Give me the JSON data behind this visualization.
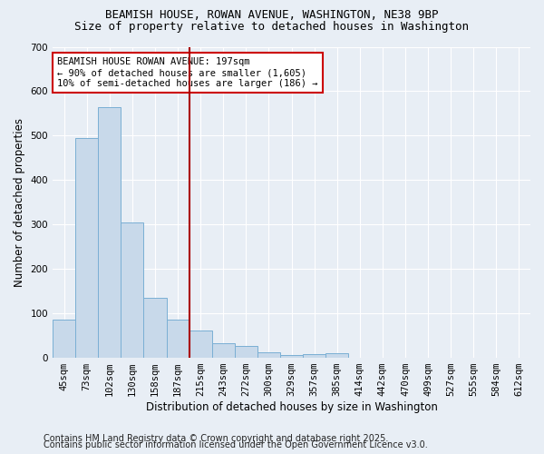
{
  "title_line1": "BEAMISH HOUSE, ROWAN AVENUE, WASHINGTON, NE38 9BP",
  "title_line2": "Size of property relative to detached houses in Washington",
  "xlabel": "Distribution of detached houses by size in Washington",
  "ylabel": "Number of detached properties",
  "categories": [
    "45sqm",
    "73sqm",
    "102sqm",
    "130sqm",
    "158sqm",
    "187sqm",
    "215sqm",
    "243sqm",
    "272sqm",
    "300sqm",
    "329sqm",
    "357sqm",
    "385sqm",
    "414sqm",
    "442sqm",
    "470sqm",
    "499sqm",
    "527sqm",
    "555sqm",
    "584sqm",
    "612sqm"
  ],
  "values": [
    85,
    495,
    565,
    305,
    135,
    85,
    62,
    32,
    27,
    12,
    7,
    8,
    10,
    0,
    0,
    0,
    0,
    0,
    0,
    0,
    0
  ],
  "bar_color": "#c8d9ea",
  "bar_edge_color": "#7aafd4",
  "vline_x": 5.5,
  "vline_color": "#aa0000",
  "ylim": [
    0,
    700
  ],
  "yticks": [
    0,
    100,
    200,
    300,
    400,
    500,
    600,
    700
  ],
  "annotation_text": "BEAMISH HOUSE ROWAN AVENUE: 197sqm\n← 90% of detached houses are smaller (1,605)\n10% of semi-detached houses are larger (186) →",
  "annotation_box_color": "#ffffff",
  "annotation_box_edge": "#cc0000",
  "footer_line1": "Contains HM Land Registry data © Crown copyright and database right 2025.",
  "footer_line2": "Contains public sector information licensed under the Open Government Licence v3.0.",
  "background_color": "#e8eef5",
  "grid_color": "#ffffff",
  "title_fontsize": 9,
  "subtitle_fontsize": 9,
  "axis_label_fontsize": 8.5,
  "tick_fontsize": 7.5,
  "annotation_fontsize": 7.5,
  "footer_fontsize": 7
}
